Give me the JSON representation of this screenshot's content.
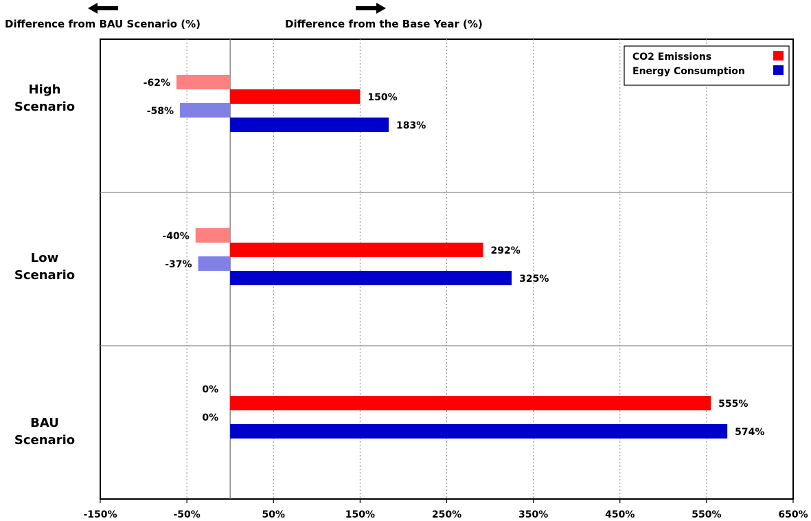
{
  "chart_data": {
    "type": "bar",
    "orientation": "horizontal",
    "left_header": "Difference from BAU Scenario (%)",
    "right_header": "Difference from the Base Year (%)",
    "categories": [
      "High Scenario",
      "Low Scenario",
      "BAU Scenario"
    ],
    "category_lines": [
      [
        "High",
        "Scenario"
      ],
      [
        "Low",
        "Scenario"
      ],
      [
        "BAU",
        "Scenario"
      ]
    ],
    "x_ticks": [
      -150,
      -50,
      50,
      150,
      250,
      350,
      450,
      550,
      650
    ],
    "x_tick_labels": [
      "-150%",
      "-50%",
      "50%",
      "150%",
      "250%",
      "350%",
      "450%",
      "550%",
      "650%"
    ],
    "xlim": [
      -150,
      650
    ],
    "grid": true,
    "legend_position": "top-right",
    "series": [
      {
        "name": "CO2 Emissions",
        "color": "#ff0000",
        "diff_from_bau_color": "#ff8080",
        "diff_from_bau": [
          -62,
          -40,
          0
        ],
        "diff_from_bau_labels": [
          "-62%",
          "-40%",
          "0%"
        ],
        "diff_from_base_year": [
          150,
          292,
          555
        ],
        "diff_from_base_year_labels": [
          "150%",
          "292%",
          "555%"
        ]
      },
      {
        "name": "Energy Consumption",
        "color": "#0000cc",
        "diff_from_bau_color": "#8080e6",
        "diff_from_bau": [
          -58,
          -37,
          0
        ],
        "diff_from_bau_labels": [
          "-58%",
          "-37%",
          "0%"
        ],
        "diff_from_base_year": [
          183,
          325,
          574
        ],
        "diff_from_base_year_labels": [
          "183%",
          "325%",
          "574%"
        ]
      }
    ]
  }
}
